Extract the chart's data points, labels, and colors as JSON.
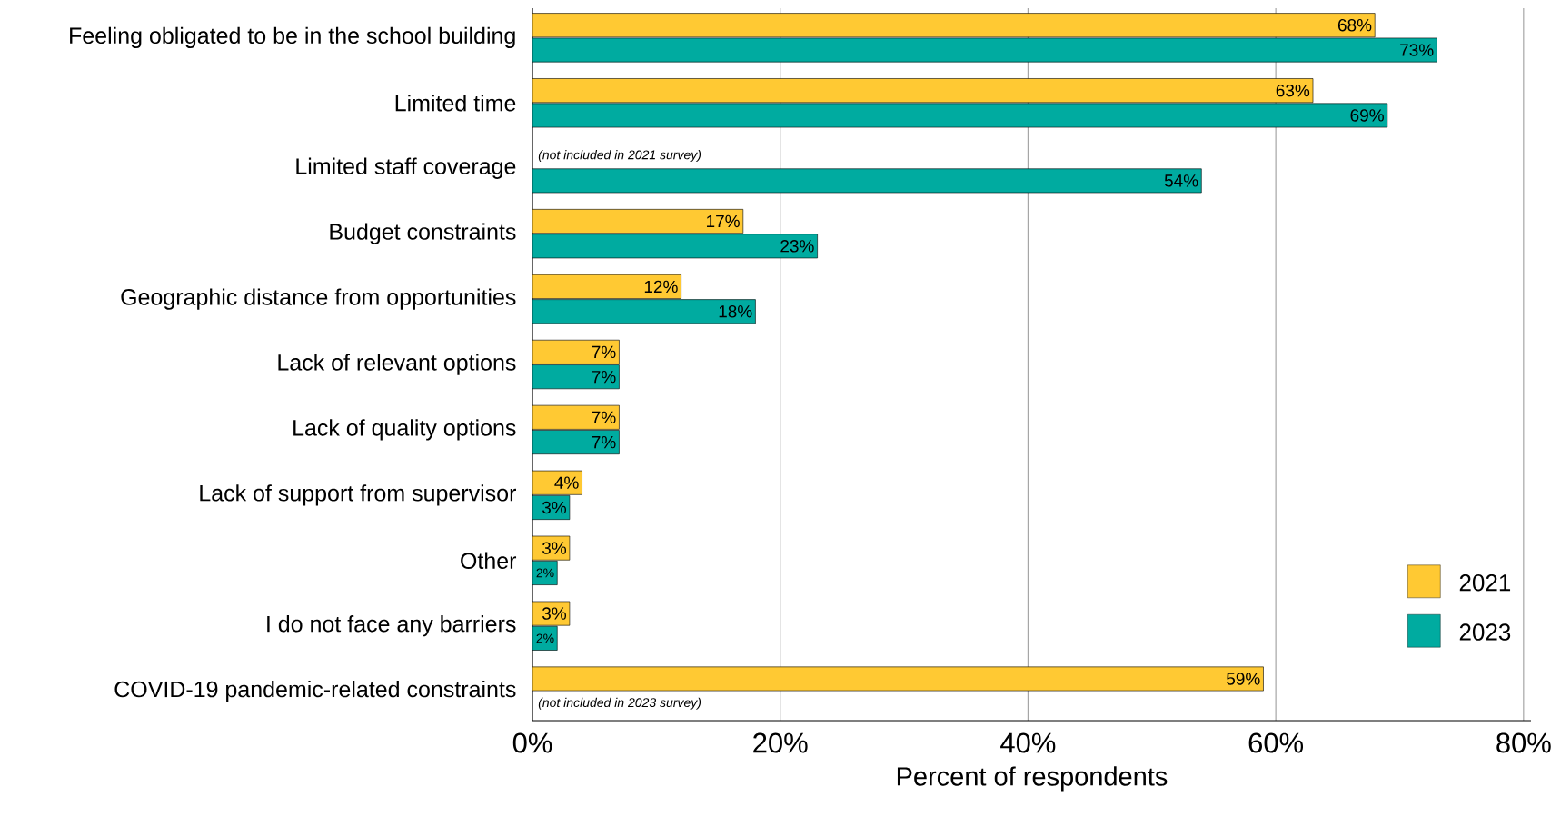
{
  "chart_data": {
    "type": "bar",
    "orientation": "horizontal",
    "xlabel": "Percent of respondents",
    "categories": [
      "Feeling obligated to be in the school building",
      "Limited time",
      "Limited staff coverage",
      "Budget constraints",
      "Geographic distance from opportunities",
      "Lack of relevant options",
      "Lack of quality options",
      "Lack of support from supervisor",
      "Other",
      "I do not face any barriers",
      "COVID-19 pandemic-related constraints"
    ],
    "series": [
      {
        "name": "2021",
        "color": "#ffc933",
        "values": [
          68,
          63,
          null,
          17,
          12,
          7,
          7,
          4,
          3,
          3,
          59
        ],
        "value_labels": [
          "68%",
          "63%",
          null,
          "17%",
          "12%",
          "7%",
          "7%",
          "4%",
          "3%",
          "3%",
          "59%"
        ]
      },
      {
        "name": "2023",
        "color": "#00aba0",
        "values": [
          73,
          69,
          54,
          23,
          18,
          7,
          7,
          3,
          2,
          2,
          null
        ],
        "value_labels": [
          "73%",
          "69%",
          "54%",
          "23%",
          "18%",
          "7%",
          "7%",
          "3%",
          "2%",
          "2%",
          null
        ]
      }
    ],
    "xlim": [
      0,
      80.6
    ],
    "xticks": [
      {
        "value": 0,
        "label": "0%"
      },
      {
        "value": 20,
        "label": "20%"
      },
      {
        "value": 40,
        "label": "40%"
      },
      {
        "value": 60,
        "label": "60%"
      },
      {
        "value": 80,
        "label": "80%"
      }
    ],
    "grid": "x",
    "legend": "bottom right",
    "annotations": [
      {
        "text": "(not included in 2021 survey)",
        "x": 0,
        "y": "Limited staff coverage"
      },
      {
        "text": "(not included in 2023 survey)",
        "x": 0,
        "y": "COVID-19 pandemic-related constraints"
      }
    ]
  }
}
